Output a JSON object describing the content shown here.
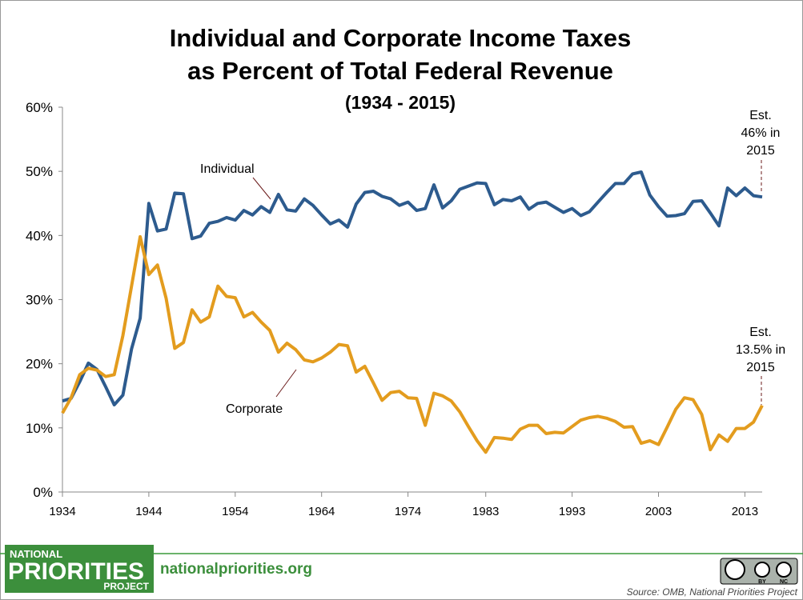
{
  "chart_data": {
    "type": "line",
    "title": [
      "Individual and Corporate Income Taxes",
      "as Percent of Total Federal Revenue"
    ],
    "subtitle": "(1934 - 2015)",
    "xlim": [
      1934,
      2015
    ],
    "xticks": [
      1934,
      1944,
      1954,
      1964,
      1974,
      1983,
      1993,
      2003,
      2013
    ],
    "ylim": [
      0,
      60
    ],
    "yticks": [
      {
        "value": 0,
        "label": "0%"
      },
      {
        "value": 10,
        "label": "10%"
      },
      {
        "value": 20,
        "label": "20%"
      },
      {
        "value": 30,
        "label": "30%"
      },
      {
        "value": 40,
        "label": "40%"
      },
      {
        "value": 50,
        "label": "50%"
      },
      {
        "value": 60,
        "label": "60%"
      }
    ],
    "x": [
      1934,
      1935,
      1936,
      1937,
      1938,
      1939,
      1940,
      1941,
      1942,
      1943,
      1944,
      1945,
      1946,
      1947,
      1948,
      1949,
      1950,
      1951,
      1952,
      1953,
      1954,
      1955,
      1956,
      1957,
      1958,
      1959,
      1960,
      1961,
      1962,
      1963,
      1964,
      1965,
      1966,
      1967,
      1968,
      1969,
      1970,
      1971,
      1972,
      1973,
      1974,
      1975,
      1976,
      1977,
      1978,
      1979,
      1980,
      1981,
      1982,
      1983,
      1984,
      1985,
      1986,
      1987,
      1988,
      1989,
      1990,
      1991,
      1992,
      1993,
      1994,
      1995,
      1996,
      1997,
      1998,
      1999,
      2000,
      2001,
      2002,
      2003,
      2004,
      2005,
      2006,
      2007,
      2008,
      2009,
      2010,
      2011,
      2012,
      2013,
      2014,
      2015
    ],
    "series": [
      {
        "name": "Individual",
        "color": "#2d5b8e",
        "values": [
          14.2,
          14.6,
          17.2,
          20.1,
          19.1,
          16.4,
          13.6,
          15.1,
          22.3,
          27.1,
          45.0,
          40.7,
          41.0,
          46.6,
          46.5,
          39.5,
          39.9,
          41.9,
          42.2,
          42.8,
          42.4,
          43.9,
          43.2,
          44.5,
          43.6,
          46.4,
          44.0,
          43.8,
          45.7,
          44.7,
          43.2,
          41.8,
          42.4,
          41.3,
          44.9,
          46.7,
          46.9,
          46.1,
          45.7,
          44.7,
          45.2,
          43.9,
          44.2,
          47.9,
          44.3,
          45.4,
          47.2,
          47.7,
          48.2,
          48.1,
          44.8,
          45.6,
          45.4,
          46.0,
          44.1,
          45.0,
          45.2,
          44.4,
          43.6,
          44.2,
          43.1,
          43.7,
          45.2,
          46.7,
          48.1,
          48.1,
          49.6,
          49.9,
          46.3,
          44.5,
          43.0,
          43.1,
          43.4,
          45.3,
          45.4,
          43.5,
          41.5,
          47.4,
          46.2,
          47.4,
          46.2,
          46.0
        ]
      },
      {
        "name": "Corporate",
        "color": "#e39c1e",
        "values": [
          12.3,
          14.7,
          18.3,
          19.3,
          19.0,
          18.0,
          18.3,
          24.4,
          32.1,
          39.8,
          33.9,
          35.4,
          30.2,
          22.4,
          23.3,
          28.4,
          26.5,
          27.3,
          32.1,
          30.5,
          30.3,
          27.3,
          28.0,
          26.5,
          25.2,
          21.8,
          23.2,
          22.2,
          20.6,
          20.3,
          20.9,
          21.8,
          23.0,
          22.8,
          18.7,
          19.6,
          17.0,
          14.3,
          15.5,
          15.7,
          14.7,
          14.6,
          10.4,
          15.4,
          15.0,
          14.2,
          12.5,
          10.2,
          8.0,
          6.2,
          8.5,
          8.4,
          8.2,
          9.8,
          10.4,
          10.4,
          9.1,
          9.3,
          9.2,
          10.2,
          11.2,
          11.6,
          11.8,
          11.5,
          11.0,
          10.1,
          10.2,
          7.6,
          8.0,
          7.4,
          10.1,
          12.9,
          14.7,
          14.4,
          12.1,
          6.6,
          8.9,
          7.9,
          9.9,
          9.9,
          10.9,
          13.5
        ]
      }
    ],
    "annotations": [
      [
        "Est.",
        "46% in",
        "2015"
      ],
      [
        "Est.",
        "13.5% in",
        "2015"
      ]
    ]
  },
  "footer": {
    "logo": [
      "NATIONAL",
      "PRIORITIES",
      "PROJECT"
    ],
    "website": "nationalpriorities.org",
    "license": [
      "BY",
      "NC"
    ],
    "source": "Source: OMB, National Priorities Project"
  }
}
